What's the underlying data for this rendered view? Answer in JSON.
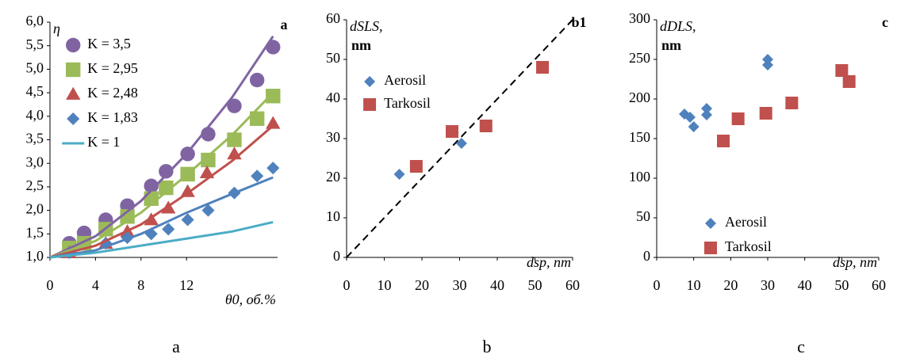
{
  "chart_data": [
    {
      "type": "scatter",
      "panel_label": "a",
      "ylabel": "η",
      "xlabel": "θ0, об.%",
      "xlim": [
        0,
        20
      ],
      "xticks": [
        0,
        4,
        8,
        12
      ],
      "ylim": [
        1,
        6
      ],
      "yticks": [
        {
          "value": 1,
          "label": "1,0"
        },
        {
          "value": 1.5,
          "label": "1,5"
        },
        {
          "value": 2,
          "label": "2,0"
        },
        {
          "value": 2.5,
          "label": "2,5"
        },
        {
          "value": 3,
          "label": "3,0"
        },
        {
          "value": 3.5,
          "label": "3,5"
        },
        {
          "value": 4,
          "label": "4,0"
        },
        {
          "value": 4.5,
          "label": "4,5"
        },
        {
          "value": 5,
          "label": "5,0"
        },
        {
          "value": 5.5,
          "label": "5,5"
        },
        {
          "value": 6,
          "label": "6,0"
        }
      ],
      "legend": "upper left",
      "fit_x": [
        0,
        4,
        8,
        12,
        16,
        19.6
      ],
      "series": [
        {
          "name": "K = 3,5",
          "color": "#8064a2",
          "marker": "circle",
          "x": [
            1.7,
            3.0,
            4.9,
            6.8,
            8.9,
            10.2,
            12.1,
            13.9,
            16.2,
            18.2,
            19.6
          ],
          "values": [
            1.3,
            1.52,
            1.8,
            2.1,
            2.52,
            2.83,
            3.2,
            3.62,
            4.22,
            4.77,
            5.47
          ],
          "fit": [
            1,
            1.45,
            2.2,
            3.2,
            4.4,
            5.7
          ]
        },
        {
          "name": "K = 2,95",
          "color": "#9bbb59",
          "marker": "square",
          "x": [
            1.7,
            3.0,
            4.9,
            6.8,
            8.9,
            10.2,
            12.1,
            13.9,
            16.2,
            18.2,
            19.6
          ],
          "values": [
            1.2,
            1.3,
            1.6,
            1.87,
            2.25,
            2.48,
            2.77,
            3.07,
            3.5,
            3.95,
            4.43
          ],
          "fit": [
            1,
            1.35,
            1.95,
            2.75,
            3.6,
            4.5
          ]
        },
        {
          "name": "K = 2,48",
          "color": "#c0504d",
          "marker": "triangle",
          "x": [
            1.7,
            4.9,
            6.8,
            8.9,
            10.4,
            12.1,
            13.8,
            16.2,
            19.6
          ],
          "values": [
            1.1,
            1.3,
            1.55,
            1.8,
            2.05,
            2.4,
            2.8,
            3.2,
            3.85
          ],
          "fit": [
            1,
            1.25,
            1.7,
            2.35,
            3.05,
            3.8
          ]
        },
        {
          "name": "K = 1,83",
          "color": "#4f81bd",
          "marker": "diamond",
          "x": [
            1.7,
            4.9,
            6.8,
            8.9,
            10.4,
            12.1,
            13.9,
            16.2,
            18.2,
            19.6
          ],
          "values": [
            1.1,
            1.3,
            1.42,
            1.5,
            1.6,
            1.8,
            2.0,
            2.37,
            2.73,
            2.9
          ],
          "fit": [
            1,
            1.15,
            1.5,
            1.95,
            2.35,
            2.7
          ]
        },
        {
          "name": "K = 1",
          "color": "#4bacc6",
          "fit": [
            1,
            1.1,
            1.25,
            1.4,
            1.55,
            1.75
          ]
        }
      ]
    },
    {
      "type": "scatter",
      "panel_label": "b1",
      "ylabel": "dSLS,",
      "ylabel_unit": "nm",
      "xlabel": "dsp, nm",
      "xlim": [
        0,
        60
      ],
      "xticks": [
        0,
        10,
        20,
        30,
        40,
        50,
        60
      ],
      "ylim": [
        0,
        60
      ],
      "yticks": [
        0,
        10,
        20,
        30,
        40,
        50,
        60
      ],
      "legend": "center left",
      "reference_line": {
        "x": [
          0,
          60
        ],
        "y": [
          0,
          60
        ]
      },
      "series": [
        {
          "name": "Aerosil",
          "color": "#4f81bd",
          "marker": "diamond",
          "x": [
            14,
            30.5
          ],
          "values": [
            21,
            28.8
          ]
        },
        {
          "name": "Tarkosil",
          "color": "#c0504d",
          "marker": "square",
          "x": [
            18.5,
            28,
            37,
            52
          ],
          "values": [
            23,
            31.8,
            33.2,
            48
          ]
        }
      ]
    },
    {
      "type": "scatter",
      "panel_label": "c",
      "ylabel": "dDLS,",
      "ylabel_unit": "nm",
      "xlabel": "dsp, nm",
      "xlim": [
        0,
        60
      ],
      "xticks": [
        0,
        10,
        20,
        30,
        40,
        50,
        60
      ],
      "ylim": [
        0,
        300
      ],
      "yticks": [
        0,
        50,
        100,
        150,
        200,
        250,
        300
      ],
      "legend": "lower left",
      "series": [
        {
          "name": "Aerosil",
          "color": "#4f81bd",
          "marker": "diamond",
          "x": [
            7.5,
            9,
            10,
            13.5,
            13.5,
            30,
            30
          ],
          "values": [
            181,
            177,
            165,
            180,
            188,
            250,
            243
          ]
        },
        {
          "name": "Tarkosil",
          "color": "#c0504d",
          "marker": "square",
          "x": [
            18,
            22,
            29.5,
            36.5,
            50,
            52
          ],
          "values": [
            147,
            175,
            182,
            195,
            236,
            222
          ]
        }
      ]
    }
  ],
  "captions": [
    "a",
    "b",
    "c"
  ]
}
